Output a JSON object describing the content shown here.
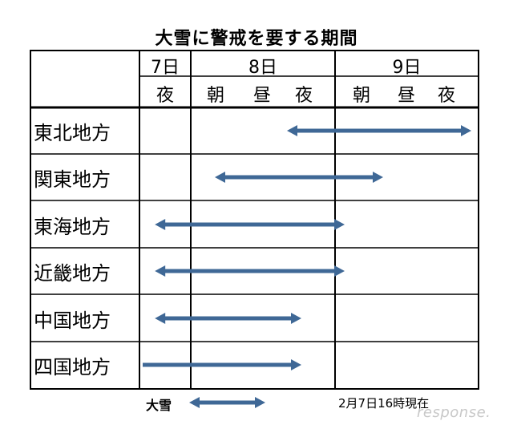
{
  "title": "大雪に警戒を要する期間",
  "header": {
    "days": [
      "7日",
      "8日",
      "9日"
    ],
    "periods": [
      [
        "夜"
      ],
      [
        "朝",
        "昼",
        "夜"
      ],
      [
        "朝",
        "昼",
        "夜"
      ]
    ]
  },
  "rows": [
    {
      "region": "東北地方",
      "start": 3.0,
      "end": 7.0
    },
    {
      "region": "関東地方",
      "start": 1.5,
      "end": 5.0
    },
    {
      "region": "東海地方",
      "start": 0.3,
      "end": 4.2
    },
    {
      "region": "近畿地方",
      "start": 0.3,
      "end": 4.2
    },
    {
      "region": "中国地方",
      "start": 0.3,
      "end": 3.3
    },
    {
      "region": "四国地方",
      "start": 0.0,
      "end": 3.3
    }
  ],
  "legend": {
    "label": "大雪"
  },
  "as_of": "2月7日16時現在",
  "watermark": "response.",
  "colors": {
    "arrow": "#3f6896",
    "grid": "#000000"
  }
}
